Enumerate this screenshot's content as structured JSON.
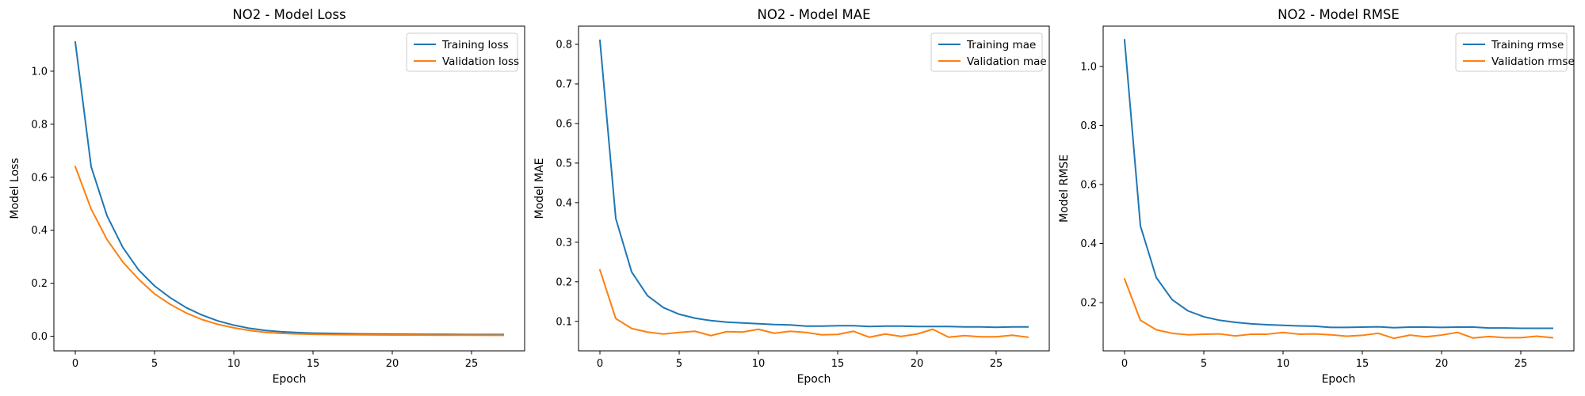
{
  "chart_data": [
    {
      "type": "line",
      "title": "NO2 - Model Loss",
      "xlabel": "Epoch",
      "ylabel": "Model Loss",
      "xlim": [
        -1.35,
        28.35
      ],
      "ylim": [
        -0.055,
        1.17
      ],
      "xticks": [
        0,
        5,
        10,
        15,
        20,
        25
      ],
      "xtick_labels": [
        "0",
        "5",
        "10",
        "15",
        "20",
        "25"
      ],
      "yticks": [
        0.0,
        0.2,
        0.4,
        0.6,
        0.8,
        1.0
      ],
      "ytick_labels": [
        "0.0",
        "0.2",
        "0.4",
        "0.6",
        "0.8",
        "1.0"
      ],
      "grid": false,
      "legend_position": "upper right",
      "x": [
        0,
        1,
        2,
        3,
        4,
        5,
        6,
        7,
        8,
        9,
        10,
        11,
        12,
        13,
        14,
        15,
        16,
        17,
        18,
        19,
        20,
        21,
        22,
        23,
        24,
        25,
        26,
        27
      ],
      "series": [
        {
          "name": "Training loss",
          "color": "#1f77b4",
          "values": [
            1.11,
            0.64,
            0.455,
            0.335,
            0.25,
            0.19,
            0.145,
            0.108,
            0.08,
            0.058,
            0.042,
            0.03,
            0.022,
            0.017,
            0.014,
            0.012,
            0.011,
            0.01,
            0.009,
            0.0085,
            0.008,
            0.0078,
            0.0075,
            0.0072,
            0.007,
            0.0068,
            0.0066,
            0.0065
          ]
        },
        {
          "name": "Validation loss",
          "color": "#ff7f0e",
          "values": [
            0.64,
            0.48,
            0.365,
            0.28,
            0.215,
            0.16,
            0.12,
            0.088,
            0.063,
            0.045,
            0.032,
            0.022,
            0.015,
            0.011,
            0.009,
            0.0075,
            0.0065,
            0.006,
            0.0055,
            0.005,
            0.0048,
            0.0046,
            0.0044,
            0.0042,
            0.004,
            0.0039,
            0.0038,
            0.0037
          ]
        }
      ]
    },
    {
      "type": "line",
      "title": "NO2 - Model MAE",
      "xlabel": "Epoch",
      "ylabel": "Model MAE",
      "xlim": [
        -1.35,
        28.35
      ],
      "ylim": [
        0.0255,
        0.846
      ],
      "xticks": [
        0,
        5,
        10,
        15,
        20,
        25
      ],
      "xtick_labels": [
        "0",
        "5",
        "10",
        "15",
        "20",
        "25"
      ],
      "yticks": [
        0.1,
        0.2,
        0.3,
        0.4,
        0.5,
        0.6,
        0.7,
        0.8
      ],
      "ytick_labels": [
        "0.1",
        "0.2",
        "0.3",
        "0.4",
        "0.5",
        "0.6",
        "0.7",
        "0.8"
      ],
      "grid": false,
      "legend_position": "upper right",
      "x": [
        0,
        1,
        2,
        3,
        4,
        5,
        6,
        7,
        8,
        9,
        10,
        11,
        12,
        13,
        14,
        15,
        16,
        17,
        18,
        19,
        20,
        21,
        22,
        23,
        24,
        25,
        26,
        27
      ],
      "series": [
        {
          "name": "Training mae",
          "color": "#1f77b4",
          "values": [
            0.81,
            0.36,
            0.225,
            0.165,
            0.135,
            0.118,
            0.108,
            0.102,
            0.098,
            0.096,
            0.094,
            0.092,
            0.091,
            0.088,
            0.088,
            0.089,
            0.089,
            0.087,
            0.088,
            0.088,
            0.087,
            0.087,
            0.087,
            0.086,
            0.086,
            0.085,
            0.086,
            0.086
          ]
        },
        {
          "name": "Validation mae",
          "color": "#ff7f0e",
          "values": [
            0.23,
            0.107,
            0.082,
            0.073,
            0.068,
            0.072,
            0.075,
            0.064,
            0.074,
            0.073,
            0.08,
            0.07,
            0.075,
            0.072,
            0.066,
            0.067,
            0.075,
            0.06,
            0.068,
            0.062,
            0.068,
            0.08,
            0.06,
            0.064,
            0.061,
            0.061,
            0.065,
            0.06
          ]
        }
      ]
    },
    {
      "type": "line",
      "title": "NO2 - Model RMSE",
      "xlabel": "Epoch",
      "ylabel": "Model RMSE",
      "xlim": [
        -1.35,
        28.35
      ],
      "ylim": [
        0.0365,
        1.1365
      ],
      "xticks": [
        0,
        5,
        10,
        15,
        20,
        25
      ],
      "xtick_labels": [
        "0",
        "5",
        "10",
        "15",
        "20",
        "25"
      ],
      "yticks": [
        0.2,
        0.4,
        0.6,
        0.8,
        1.0
      ],
      "ytick_labels": [
        "0.2",
        "0.4",
        "0.6",
        "0.8",
        "1.0"
      ],
      "grid": false,
      "legend_position": "upper right",
      "x": [
        0,
        1,
        2,
        3,
        4,
        5,
        6,
        7,
        8,
        9,
        10,
        11,
        12,
        13,
        14,
        15,
        16,
        17,
        18,
        19,
        20,
        21,
        22,
        23,
        24,
        25,
        26,
        27
      ],
      "series": [
        {
          "name": "Training rmse",
          "color": "#1f77b4",
          "values": [
            1.09,
            0.46,
            0.285,
            0.21,
            0.172,
            0.152,
            0.14,
            0.133,
            0.128,
            0.125,
            0.123,
            0.121,
            0.12,
            0.116,
            0.116,
            0.117,
            0.118,
            0.115,
            0.117,
            0.117,
            0.116,
            0.117,
            0.117,
            0.114,
            0.114,
            0.113,
            0.113,
            0.113
          ]
        },
        {
          "name": "Validation rmse",
          "color": "#ff7f0e",
          "values": [
            0.28,
            0.14,
            0.108,
            0.096,
            0.091,
            0.093,
            0.094,
            0.087,
            0.093,
            0.093,
            0.099,
            0.093,
            0.094,
            0.091,
            0.086,
            0.089,
            0.096,
            0.079,
            0.09,
            0.084,
            0.09,
            0.099,
            0.08,
            0.085,
            0.081,
            0.081,
            0.086,
            0.081
          ]
        }
      ]
    }
  ]
}
